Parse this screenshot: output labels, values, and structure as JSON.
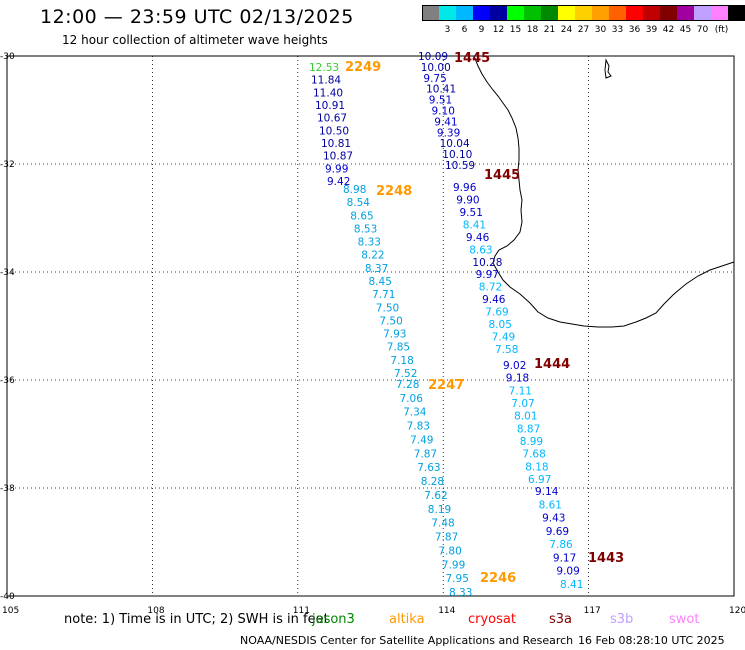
{
  "header": {
    "title": "12:00 — 23:59 UTC 02/13/2025",
    "subtitle": "12 hour collection of altimeter wave heights"
  },
  "legend": {
    "colors": [
      "#808080",
      "#00e8e8",
      "#00b8ff",
      "#0000ff",
      "#0000a0",
      "#00ff00",
      "#00c000",
      "#008800",
      "#ffff00",
      "#ffd000",
      "#ffa000",
      "#ff6000",
      "#ff0000",
      "#c00000",
      "#800000",
      "#a000a0",
      "#c0a0ff",
      "#ff80ff",
      "#000000"
    ],
    "labels": [
      "3",
      "6",
      "9",
      "12",
      "15",
      "18",
      "21",
      "24",
      "27",
      "30",
      "33",
      "36",
      "39",
      "42",
      "45",
      "70",
      "(ft)"
    ]
  },
  "axes": {
    "lon_ticks": [
      "105",
      "108",
      "111",
      "114",
      "117",
      "120"
    ],
    "lat_ticks": [
      "-30",
      "-32",
      "-34",
      "-36",
      "-38",
      "-40"
    ]
  },
  "passes": [
    {
      "time": "2249",
      "color": "#ff9900",
      "values": [
        "12.53",
        "11.84",
        "11.40",
        "10.91",
        "10.67",
        "10.50",
        "10.81",
        "10.87",
        "9.99",
        "9.42"
      ],
      "colors": [
        "#33cc33",
        "#0000a0",
        "#0000a0",
        "#0000a0",
        "#0000a0",
        "#0000a0",
        "#0000a0",
        "#0000a0",
        "#0000cc",
        "#0000cc"
      ]
    },
    {
      "time": "2248",
      "color": "#ff9900",
      "values": [
        "8.98",
        "8.54",
        "8.65",
        "8.53",
        "8.33",
        "8.22",
        "8.37",
        "8.45",
        "7.71",
        "7.50",
        "7.50",
        "7.93",
        "7.85",
        "7.18",
        "7.52"
      ]
    },
    {
      "time": "2247",
      "color": "#ff9900",
      "values": [
        "7.28",
        "7.06",
        "7.34",
        "7.83",
        "7.49",
        "7.87",
        "7.63",
        "8.28",
        "7.62",
        "8.19",
        "7.48",
        "7.87",
        "7.80",
        "7.99",
        "7.95",
        "8.33"
      ]
    },
    {
      "time": "2246",
      "color": "#ff9900",
      "values": []
    },
    {
      "time": "1445",
      "color": "#800000",
      "values": [
        "10.09",
        "10.00",
        "9.75",
        "10.41",
        "9.51",
        "9.10",
        "9.41",
        "9.39",
        "10.04",
        "10.10",
        "10.59"
      ],
      "colors": [
        "#0000a0",
        "#0000a0",
        "#0000cc",
        "#0000a0",
        "#0000cc",
        "#0000cc",
        "#0000cc",
        "#0000cc",
        "#0000a0",
        "#0000a0",
        "#0000a0"
      ]
    },
    {
      "time": "1445",
      "color": "#800000",
      "values": [
        "9.96",
        "9.90",
        "9.51",
        "8.41",
        "9.46",
        "8.63",
        "10.28",
        "9.97",
        "8.72",
        "9.46",
        "7.69",
        "8.05",
        "7.49",
        "7.58"
      ],
      "colors": [
        "#0000cc",
        "#0000cc",
        "#0000cc",
        "#00b8ff",
        "#0000cc",
        "#00b8ff",
        "#0000a0",
        "#0000cc",
        "#00b8ff",
        "#0000cc",
        "#00b8ff",
        "#00b8ff",
        "#00b8ff",
        "#00b8ff"
      ]
    },
    {
      "time": "1444",
      "color": "#800000",
      "values": [
        "9.02",
        "9.18",
        "7.11",
        "7.07",
        "8.01",
        "8.87",
        "8.99",
        "7.68",
        "8.18",
        "6.97"
      ],
      "colors": [
        "#0000cc",
        "#0000cc",
        "#00b8ff",
        "#00b8ff",
        "#00b8ff",
        "#00b8ff",
        "#00b8ff",
        "#00b8ff",
        "#00b8ff",
        "#00b8ff"
      ]
    },
    {
      "time": "1443",
      "color": "#800000",
      "values": [
        "9.14",
        "8.61",
        "9.43",
        "9.69",
        "7.86",
        "9.17",
        "9.09",
        "8.41"
      ],
      "colors": [
        "#0000cc",
        "#00b8ff",
        "#0000cc",
        "#0000cc",
        "#00b8ff",
        "#0000cc",
        "#0000cc",
        "#00b8ff"
      ]
    }
  ],
  "footer": {
    "note": "note:  1) Time is in UTC; 2) SWH is in feet",
    "satellites": [
      {
        "name": "jason3",
        "color": "#008800"
      },
      {
        "name": "altika",
        "color": "#ff9900"
      },
      {
        "name": "cryosat",
        "color": "#ff0000"
      },
      {
        "name": "s3a",
        "color": "#800000"
      },
      {
        "name": "s3b",
        "color": "#c0a0ff"
      },
      {
        "name": "swot",
        "color": "#ff80ff"
      }
    ],
    "credit": "NOAA/NESDIS Center for Satellite Applications and Research",
    "stamp": "16 Feb 08:28:10 UTC 2025"
  }
}
